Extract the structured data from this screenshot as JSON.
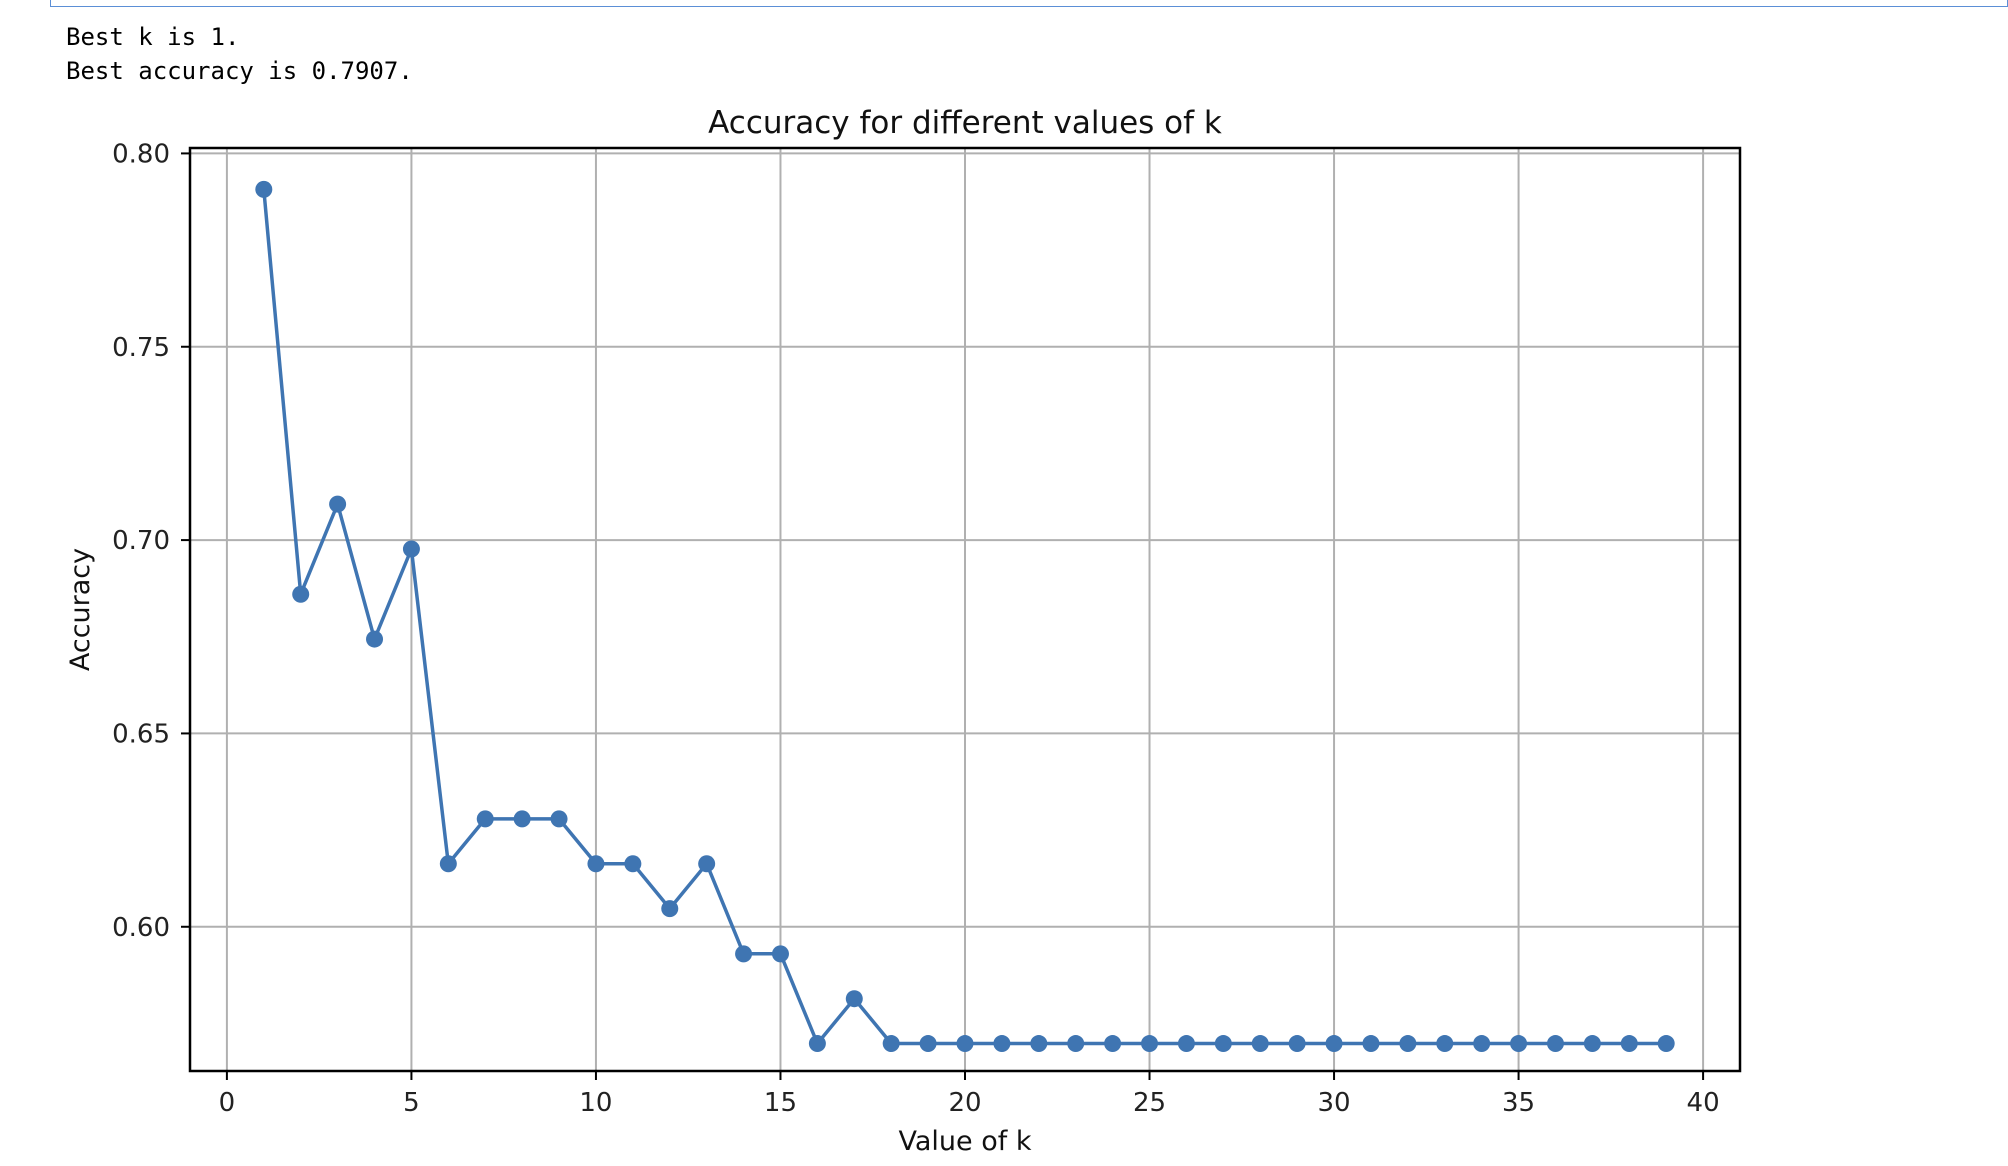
{
  "output_lines": [
    "Best k is 1.",
    "Best accuracy is 0.7907."
  ],
  "colors": {
    "line": "#3f75b2",
    "grid": "#b0b0b0",
    "axis": "#000000"
  },
  "chart_data": {
    "type": "line",
    "title": "Accuracy for different values of k",
    "xlabel": "Value of k",
    "ylabel": "Accuracy",
    "xlim": [
      -1,
      41
    ],
    "ylim": [
      0.5627,
      0.8014
    ],
    "xticks": [
      0,
      5,
      10,
      15,
      20,
      25,
      30,
      35,
      40
    ],
    "yticks": [
      0.6,
      0.65,
      0.7,
      0.75,
      0.8
    ],
    "ytick_labels": [
      "0.60",
      "0.65",
      "0.70",
      "0.75",
      "0.80"
    ],
    "grid": true,
    "marker": "circle",
    "series": [
      {
        "x": [
          1,
          2,
          3,
          4,
          5,
          6,
          7,
          8,
          9,
          10,
          11,
          12,
          13,
          14,
          15,
          16,
          17,
          18,
          19,
          20,
          21,
          22,
          23,
          24,
          25,
          26,
          27,
          28,
          29,
          30,
          31,
          32,
          33,
          34,
          35,
          36,
          37,
          38,
          39
        ],
        "values": [
          0.7907,
          0.686,
          0.7093,
          0.6744,
          0.6977,
          0.6163,
          0.6279,
          0.6279,
          0.6279,
          0.6163,
          0.6163,
          0.6047,
          0.6163,
          0.593,
          0.593,
          0.5698,
          0.5814,
          0.5698,
          0.5698,
          0.5698,
          0.5698,
          0.5698,
          0.5698,
          0.5698,
          0.5698,
          0.5698,
          0.5698,
          0.5698,
          0.5698,
          0.5698,
          0.5698,
          0.5698,
          0.5698,
          0.5698,
          0.5698,
          0.5698,
          0.5698,
          0.5698,
          0.5698
        ]
      }
    ]
  }
}
